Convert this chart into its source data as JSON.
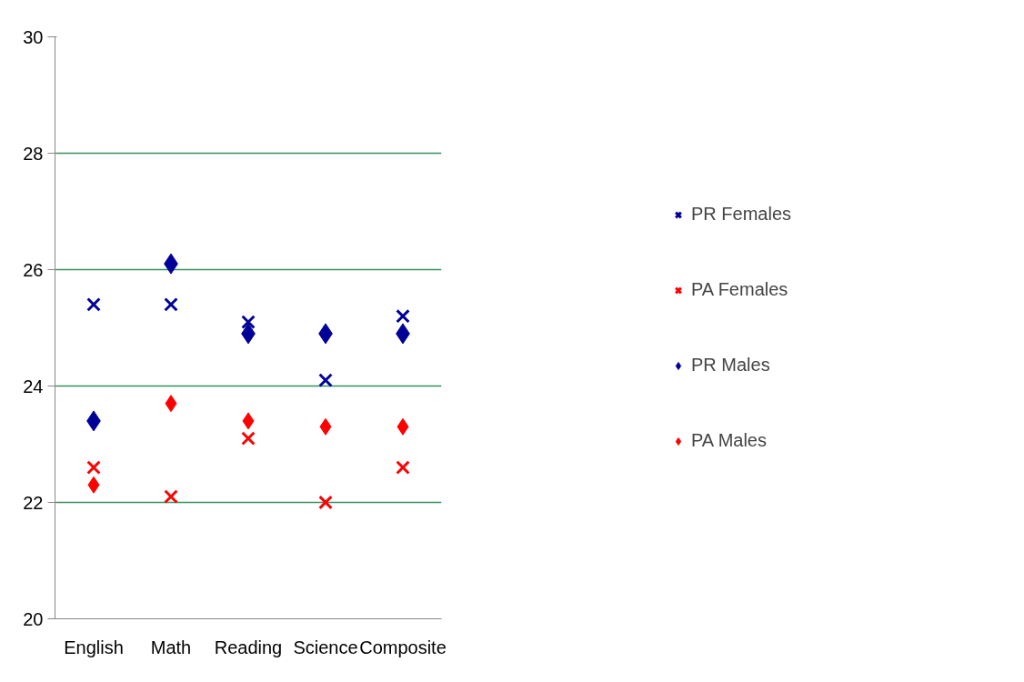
{
  "chart_data": {
    "type": "scatter",
    "categories": [
      "English",
      "Math",
      "Reading",
      "Science",
      "Composite"
    ],
    "ylim": [
      20,
      30
    ],
    "yticks": [
      20,
      22,
      24,
      26,
      28,
      30
    ],
    "grid": "y",
    "legend": "right",
    "series": [
      {
        "name": "PR Females",
        "color": "#000099",
        "marker": "cross",
        "values": [
          25.4,
          25.4,
          25.1,
          24.1,
          25.2
        ]
      },
      {
        "name": "PA Females",
        "color": "#ff0000",
        "marker": "cross",
        "values": [
          22.6,
          22.1,
          23.1,
          22.0,
          22.6
        ]
      },
      {
        "name": "PR Males",
        "color": "#000099",
        "marker": "diamond",
        "values": [
          23.4,
          26.1,
          24.9,
          24.9,
          24.9
        ]
      },
      {
        "name": "PA Males",
        "color": "#ff0000",
        "marker": "diamond",
        "values": [
          22.3,
          23.7,
          23.4,
          23.3,
          23.3
        ]
      }
    ]
  }
}
